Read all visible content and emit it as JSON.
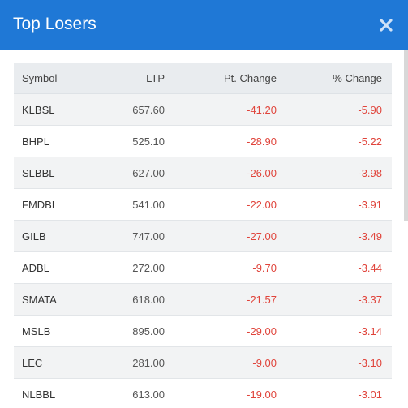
{
  "modal": {
    "title": "Top Losers",
    "close_icon": "close-icon",
    "header_color": "#1f78d6"
  },
  "table": {
    "headers": {
      "symbol": "Symbol",
      "ltp": "LTP",
      "pt_change": "Pt. Change",
      "pct_change": "% Change"
    },
    "rows": [
      {
        "symbol": "KLBSL",
        "ltp": "657.60",
        "pt_change": "-41.20",
        "pct_change": "-5.90"
      },
      {
        "symbol": "BHPL",
        "ltp": "525.10",
        "pt_change": "-28.90",
        "pct_change": "-5.22"
      },
      {
        "symbol": "SLBBL",
        "ltp": "627.00",
        "pt_change": "-26.00",
        "pct_change": "-3.98"
      },
      {
        "symbol": "FMDBL",
        "ltp": "541.00",
        "pt_change": "-22.00",
        "pct_change": "-3.91"
      },
      {
        "symbol": "GILB",
        "ltp": "747.00",
        "pt_change": "-27.00",
        "pct_change": "-3.49"
      },
      {
        "symbol": "ADBL",
        "ltp": "272.00",
        "pt_change": "-9.70",
        "pct_change": "-3.44"
      },
      {
        "symbol": "SMATA",
        "ltp": "618.00",
        "pt_change": "-21.57",
        "pct_change": "-3.37"
      },
      {
        "symbol": "MSLB",
        "ltp": "895.00",
        "pt_change": "-29.00",
        "pct_change": "-3.14"
      },
      {
        "symbol": "LEC",
        "ltp": "281.00",
        "pt_change": "-9.00",
        "pct_change": "-3.10"
      },
      {
        "symbol": "NLBBL",
        "ltp": "613.00",
        "pt_change": "-19.00",
        "pct_change": "-3.01"
      }
    ],
    "negative_color": "#e0443b"
  }
}
